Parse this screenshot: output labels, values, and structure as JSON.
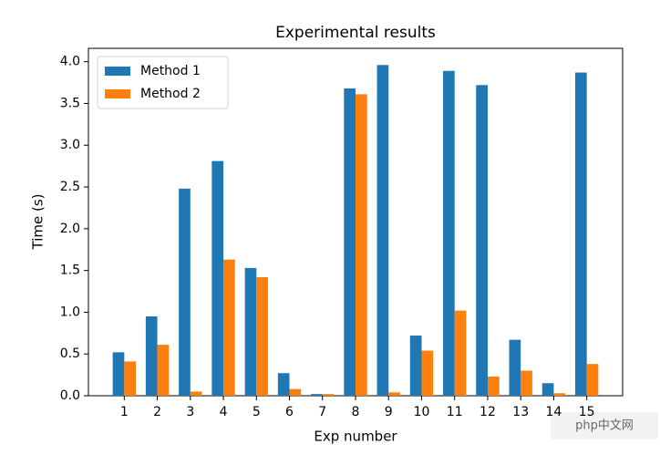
{
  "chart_data": {
    "type": "bar",
    "title": "Experimental results",
    "xlabel": "Exp number",
    "ylabel": "Time (s)",
    "categories": [
      "1",
      "2",
      "3",
      "4",
      "5",
      "6",
      "7",
      "8",
      "9",
      "10",
      "11",
      "12",
      "13",
      "14",
      "15"
    ],
    "series": [
      {
        "name": "Method 1",
        "color": "#1f77b4",
        "values": [
          0.52,
          0.95,
          2.48,
          2.81,
          1.53,
          0.27,
          0.02,
          3.68,
          3.96,
          0.72,
          3.89,
          3.72,
          0.67,
          0.15,
          3.87
        ]
      },
      {
        "name": "Method 2",
        "color": "#ff7f0e",
        "values": [
          0.41,
          0.61,
          0.05,
          1.63,
          1.42,
          0.08,
          0.02,
          3.61,
          0.04,
          0.54,
          1.02,
          0.23,
          0.3,
          0.03,
          0.38
        ]
      }
    ],
    "ylim": [
      0,
      4.16
    ],
    "yticks": [
      {
        "value": 0,
        "label": "0.0"
      },
      {
        "value": 0.5,
        "label": "0.5"
      },
      {
        "value": 1,
        "label": "1.0"
      },
      {
        "value": 1.5,
        "label": "1.5"
      },
      {
        "value": 2,
        "label": "2.0"
      },
      {
        "value": 2.5,
        "label": "2.5"
      },
      {
        "value": 3,
        "label": "3.0"
      },
      {
        "value": 3.5,
        "label": "3.5"
      },
      {
        "value": 4,
        "label": "4.0"
      }
    ],
    "legend": "upper left",
    "grid": false,
    "watermark": "php中文网"
  }
}
